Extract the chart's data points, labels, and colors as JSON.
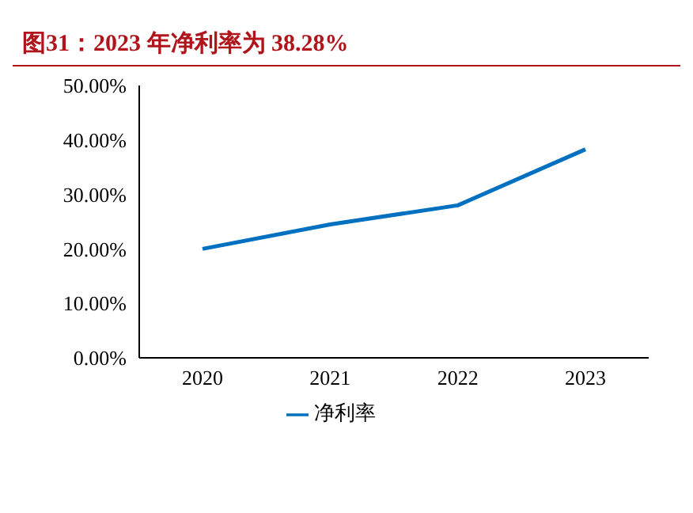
{
  "chart_data": {
    "type": "line",
    "title": "图31：2023 年净利率为 38.28%",
    "categories": [
      "2020",
      "2021",
      "2022",
      "2023"
    ],
    "series": [
      {
        "name": "净利率",
        "color": "#0070c0",
        "values": [
          20.0,
          24.5,
          28.0,
          38.28
        ]
      }
    ],
    "ylim": [
      0,
      50
    ],
    "yticks": [
      {
        "value": 0,
        "label": "0.00%"
      },
      {
        "value": 10,
        "label": "10.00%"
      },
      {
        "value": 20,
        "label": "20.00%"
      },
      {
        "value": 30,
        "label": "30.00%"
      },
      {
        "value": 40,
        "label": "40.00%"
      },
      {
        "value": 50,
        "label": "50.00%"
      }
    ],
    "grid": false,
    "legend": "bottom",
    "marker": "none",
    "line_style": "solid"
  }
}
